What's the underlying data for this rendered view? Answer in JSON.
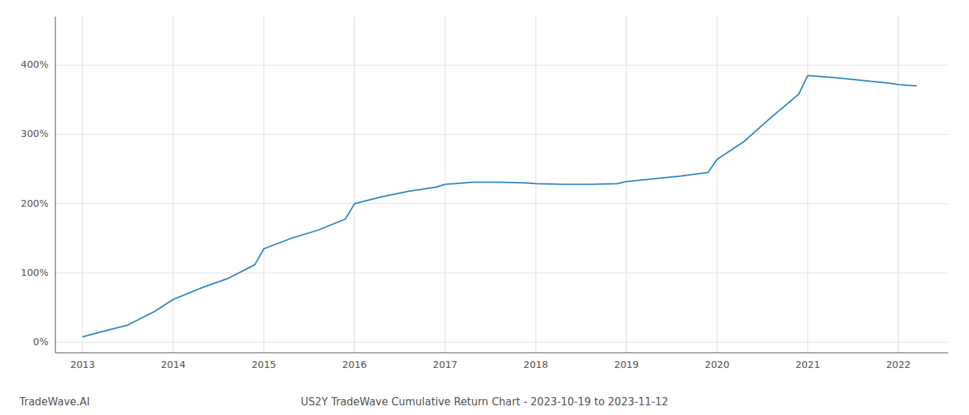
{
  "chart_data": {
    "type": "line",
    "title": "US2Y TradeWave Cumulative Return Chart - 2023-10-19 to 2023-11-12",
    "annotations": [
      "TradeWave.AI"
    ],
    "x": [
      2013.0,
      2013.2,
      2013.5,
      2013.8,
      2014.0,
      2014.3,
      2014.6,
      2014.9,
      2015.0,
      2015.3,
      2015.6,
      2015.9,
      2016.0,
      2016.3,
      2016.6,
      2016.9,
      2017.0,
      2017.3,
      2017.6,
      2017.9,
      2018.0,
      2018.3,
      2018.6,
      2018.9,
      2019.0,
      2019.3,
      2019.6,
      2019.9,
      2020.0,
      2020.3,
      2020.6,
      2020.9,
      2021.0,
      2021.3,
      2021.6,
      2021.9,
      2022.0,
      2022.2
    ],
    "values": [
      8,
      15,
      25,
      45,
      62,
      78,
      92,
      112,
      135,
      150,
      162,
      178,
      200,
      210,
      218,
      224,
      228,
      231,
      231,
      230,
      229,
      228,
      228,
      229,
      232,
      236,
      240,
      245,
      264,
      290,
      325,
      358,
      385,
      382,
      378,
      374,
      372,
      370
    ],
    "color": "#2e86c1",
    "xlim": [
      2012.7,
      2022.55
    ],
    "ylim": [
      -15,
      470
    ],
    "xticks": [
      2013,
      2014,
      2015,
      2016,
      2017,
      2018,
      2019,
      2020,
      2021,
      2022
    ],
    "yticks": [
      {
        "value": 0,
        "label": "0%"
      },
      {
        "value": 100,
        "label": "100%"
      },
      {
        "value": 200,
        "label": "200%"
      },
      {
        "value": 300,
        "label": "300%"
      },
      {
        "value": 400,
        "label": "400%"
      }
    ],
    "grid": true
  }
}
